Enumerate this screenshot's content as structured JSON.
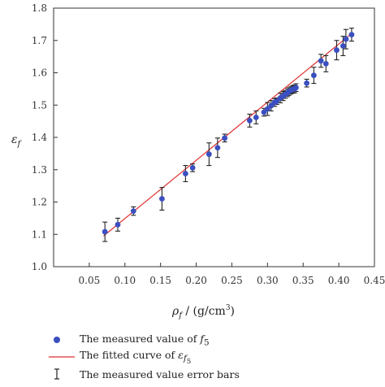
{
  "chart_data": {
    "type": "scatter",
    "xlabel": "ρf / (g/cm3)",
    "ylabel": "εf",
    "xlim": [
      0.0,
      0.45
    ],
    "ylim": [
      1.0,
      1.8
    ],
    "x_ticks": [
      "0.05",
      "0.10",
      "0.15",
      "0.20",
      "0.25",
      "0.30",
      "0.35",
      "0.40",
      "0.45"
    ],
    "x_tick_values": [
      0.05,
      0.1,
      0.15,
      0.2,
      0.25,
      0.3,
      0.35,
      0.4,
      0.45
    ],
    "y_ticks": [
      "1.0",
      "1.1",
      "1.2",
      "1.3",
      "1.4",
      "1.5",
      "1.6",
      "1.7",
      "1.8"
    ],
    "y_tick_values": [
      1.0,
      1.1,
      1.2,
      1.3,
      1.4,
      1.5,
      1.6,
      1.7,
      1.8
    ],
    "grid": false,
    "legend_position": "bottom",
    "colors": {
      "points": "#3a4fc0",
      "fit": "#e03030",
      "errorbars": "#222222"
    },
    "series": [
      {
        "kind": "points",
        "x": [
          0.072,
          0.09,
          0.112,
          0.152,
          0.185,
          0.195,
          0.218,
          0.23,
          0.24,
          0.275,
          0.284,
          0.295,
          0.3,
          0.305,
          0.31,
          0.313,
          0.318,
          0.322,
          0.325,
          0.328,
          0.33,
          0.333,
          0.336,
          0.338,
          0.34,
          0.355,
          0.365,
          0.375,
          0.382,
          0.397,
          0.406,
          0.41,
          0.418
        ],
        "y": [
          1.108,
          1.13,
          1.172,
          1.21,
          1.288,
          1.306,
          1.348,
          1.368,
          1.398,
          1.452,
          1.462,
          1.478,
          1.488,
          1.498,
          1.508,
          1.512,
          1.522,
          1.528,
          1.533,
          1.538,
          1.542,
          1.546,
          1.549,
          1.55,
          1.554,
          1.568,
          1.592,
          1.637,
          1.628,
          1.67,
          1.683,
          1.704,
          1.718
        ],
        "err": [
          0.03,
          0.02,
          0.013,
          0.035,
          0.025,
          0.012,
          0.035,
          0.03,
          0.012,
          0.02,
          0.02,
          0.012,
          0.02,
          0.016,
          0.012,
          0.01,
          0.015,
          0.014,
          0.012,
          0.012,
          0.012,
          0.012,
          0.012,
          0.012,
          0.012,
          0.012,
          0.025,
          0.02,
          0.025,
          0.03,
          0.03,
          0.03,
          0.02
        ]
      },
      {
        "kind": "fit",
        "x": [
          0.07,
          0.42
        ],
        "y": [
          1.095,
          1.725
        ]
      }
    ]
  },
  "legend": {
    "measured_prefix": "The measured value of ",
    "measured_var": "f",
    "measured_sub": "5",
    "fitted_prefix": "The fitted curve of ",
    "fitted_var": "ε",
    "fitted_sub": "f",
    "fitted_subsub": "5",
    "errorbars": "The measured value error bars"
  }
}
